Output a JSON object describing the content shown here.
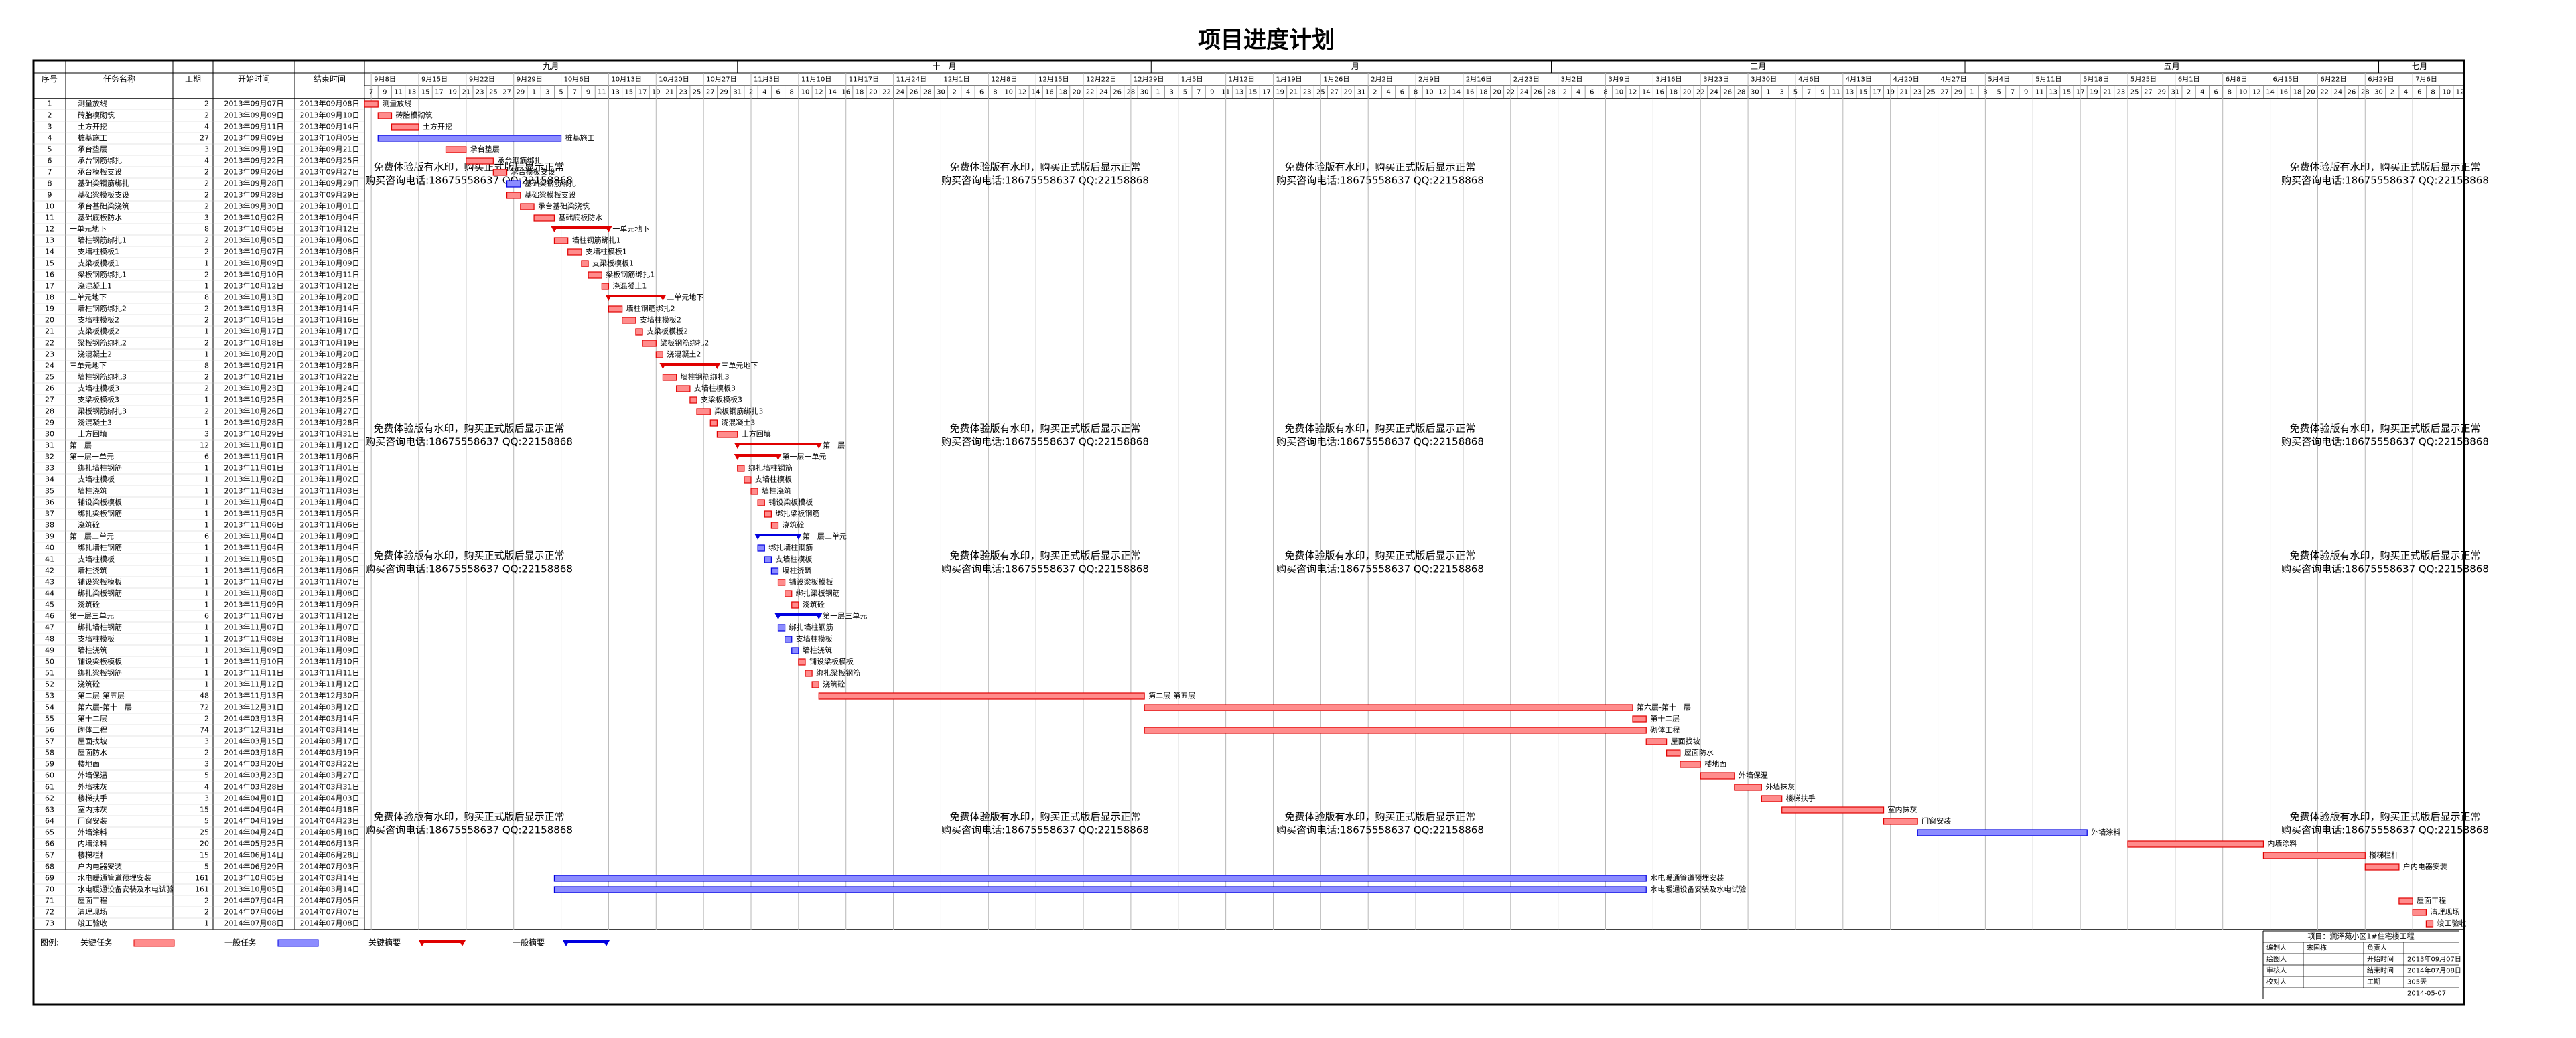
{
  "header": {
    "title": "项目进度计划",
    "columns": [
      "序号",
      "任务名称",
      "工期",
      "开始时间",
      "结束时间"
    ]
  },
  "colors": {
    "critical": "#e00000",
    "normal": "#0000e0",
    "critical_fill": "#ff8c8c",
    "normal_fill": "#8c8cff",
    "watermark": "#d6cc70"
  },
  "timeline": {
    "periods": [
      "九月",
      "十一月",
      "一月",
      "三月",
      "五月",
      "七月"
    ],
    "weeks": [
      "9月8日",
      "9月15日",
      "9月22日",
      "9月29日",
      "10月6日",
      "10月13日",
      "10月20日",
      "10月27日",
      "11月3日",
      "11月10日",
      "11月17日",
      "11月24日",
      "12月1日",
      "12月8日",
      "12月15日",
      "12月22日",
      "12月29日",
      "1月5日",
      "1月12日",
      "1月19日",
      "1月26日",
      "2月2日",
      "2月9日",
      "2月16日",
      "2月23日",
      "3月2日",
      "3月9日",
      "3月16日",
      "3月23日",
      "3月30日",
      "4月6日",
      "4月13日",
      "4月20日",
      "4月27日",
      "5月4日",
      "5月11日",
      "5月18日",
      "5月25日",
      "6月1日",
      "6月8日",
      "6月15日",
      "6月22日",
      "6月29日",
      "7月6日"
    ],
    "days": [
      [
        7,
        9,
        11,
        13,
        15,
        17,
        19,
        21,
        23,
        25,
        27,
        29
      ],
      [
        1,
        3,
        5,
        7,
        9,
        11,
        13,
        15,
        17,
        19,
        21,
        23,
        25,
        27,
        29,
        31
      ],
      [
        2,
        4,
        6,
        8,
        10,
        12,
        14,
        16,
        18,
        20,
        22,
        24,
        26,
        28,
        30
      ],
      [
        2,
        4,
        6,
        8,
        10,
        12,
        14,
        16,
        18,
        20,
        22,
        24,
        26,
        28,
        30
      ],
      [
        1,
        3,
        5,
        7,
        9,
        11,
        13,
        15,
        17,
        19,
        21,
        23,
        25,
        27,
        29,
        31
      ],
      [
        2,
        4,
        6,
        8,
        10,
        12,
        14,
        16,
        18,
        20,
        22,
        24,
        26,
        28
      ],
      [
        2,
        4,
        6,
        8,
        10,
        12,
        14,
        16,
        18,
        20,
        22,
        24,
        26,
        28,
        30
      ],
      [
        1,
        3,
        5,
        7,
        9,
        11,
        13,
        15,
        17,
        19,
        21,
        23,
        25,
        27,
        29
      ],
      [
        1,
        3,
        5,
        7,
        9,
        11,
        13,
        15,
        17,
        19,
        21,
        23,
        25,
        27,
        29,
        31
      ],
      [
        2,
        4,
        6,
        8,
        10,
        12,
        14,
        16,
        18,
        20,
        22,
        24,
        26,
        28,
        30
      ],
      [
        2,
        4,
        6,
        8,
        10,
        12
      ]
    ]
  },
  "tasks": [
    [
      1,
      "测量放线",
      2,
      "2013年09月07日",
      "2013年09月08日",
      "critical"
    ],
    [
      2,
      "砖胎模砌筑",
      2,
      "2013年09月09日",
      "2013年09月10日",
      "critical"
    ],
    [
      3,
      "土方开挖",
      4,
      "2013年09月11日",
      "2013年09月14日",
      "critical"
    ],
    [
      4,
      "桩基施工",
      27,
      "2013年09月09日",
      "2013年10月05日",
      "normal"
    ],
    [
      5,
      "承台垫层",
      3,
      "2013年09月19日",
      "2013年09月21日",
      "critical"
    ],
    [
      6,
      "承台钢筋绑扎",
      4,
      "2013年09月22日",
      "2013年09月25日",
      "critical"
    ],
    [
      7,
      "承台模板支设",
      2,
      "2013年09月26日",
      "2013年09月27日",
      "critical"
    ],
    [
      8,
      "基础梁钢筋绑扎",
      2,
      "2013年09月28日",
      "2013年09月29日",
      "normal"
    ],
    [
      9,
      "基础梁模板支设",
      2,
      "2013年09月28日",
      "2013年09月29日",
      "critical"
    ],
    [
      10,
      "承台基础梁浇筑",
      2,
      "2013年09月30日",
      "2013年10月01日",
      "critical"
    ],
    [
      11,
      "基础底板防水",
      3,
      "2013年10月02日",
      "2013年10月04日",
      "critical"
    ],
    [
      12,
      "一单元地下",
      8,
      "2013年10月05日",
      "2013年10月12日",
      "summary-critical"
    ],
    [
      13,
      "墙柱钢筋绑扎1",
      2,
      "2013年10月05日",
      "2013年10月06日",
      "critical"
    ],
    [
      14,
      "支墙柱模板1",
      2,
      "2013年10月07日",
      "2013年10月08日",
      "critical"
    ],
    [
      15,
      "支梁板模板1",
      1,
      "2013年10月09日",
      "2013年10月09日",
      "critical"
    ],
    [
      16,
      "梁板钢筋绑扎1",
      2,
      "2013年10月10日",
      "2013年10月11日",
      "critical"
    ],
    [
      17,
      "浇混凝土1",
      1,
      "2013年10月12日",
      "2013年10月12日",
      "critical"
    ],
    [
      18,
      "二单元地下",
      8,
      "2013年10月13日",
      "2013年10月20日",
      "summary-critical"
    ],
    [
      19,
      "墙柱钢筋绑扎2",
      2,
      "2013年10月13日",
      "2013年10月14日",
      "critical"
    ],
    [
      20,
      "支墙柱模板2",
      2,
      "2013年10月15日",
      "2013年10月16日",
      "critical"
    ],
    [
      21,
      "支梁板模板2",
      1,
      "2013年10月17日",
      "2013年10月17日",
      "critical"
    ],
    [
      22,
      "梁板钢筋绑扎2",
      2,
      "2013年10月18日",
      "2013年10月19日",
      "critical"
    ],
    [
      23,
      "浇混凝土2",
      1,
      "2013年10月20日",
      "2013年10月20日",
      "critical"
    ],
    [
      24,
      "三单元地下",
      8,
      "2013年10月21日",
      "2013年10月28日",
      "summary-critical"
    ],
    [
      25,
      "墙柱钢筋绑扎3",
      2,
      "2013年10月21日",
      "2013年10月22日",
      "critical"
    ],
    [
      26,
      "支墙柱模板3",
      2,
      "2013年10月23日",
      "2013年10月24日",
      "critical"
    ],
    [
      27,
      "支梁板模板3",
      1,
      "2013年10月25日",
      "2013年10月25日",
      "critical"
    ],
    [
      28,
      "梁板钢筋绑扎3",
      2,
      "2013年10月26日",
      "2013年10月27日",
      "critical"
    ],
    [
      29,
      "浇混凝土3",
      1,
      "2013年10月28日",
      "2013年10月28日",
      "critical"
    ],
    [
      30,
      "土方回填",
      3,
      "2013年10月29日",
      "2013年10月31日",
      "critical"
    ],
    [
      31,
      "第一层",
      12,
      "2013年11月01日",
      "2013年11月12日",
      "summary-critical"
    ],
    [
      32,
      "第一层一单元",
      6,
      "2013年11月01日",
      "2013年11月06日",
      "summary-critical"
    ],
    [
      33,
      "绑扎墙柱钢筋",
      1,
      "2013年11月01日",
      "2013年11月01日",
      "critical"
    ],
    [
      34,
      "支墙柱模板",
      1,
      "2013年11月02日",
      "2013年11月02日",
      "critical"
    ],
    [
      35,
      "墙柱浇筑",
      1,
      "2013年11月03日",
      "2013年11月03日",
      "critical"
    ],
    [
      36,
      "铺设梁板模板",
      1,
      "2013年11月04日",
      "2013年11月04日",
      "critical"
    ],
    [
      37,
      "绑扎梁板钢筋",
      1,
      "2013年11月05日",
      "2013年11月05日",
      "critical"
    ],
    [
      38,
      "浇筑砼",
      1,
      "2013年11月06日",
      "2013年11月06日",
      "critical"
    ],
    [
      39,
      "第一层二单元",
      6,
      "2013年11月04日",
      "2013年11月09日",
      "summary-normal"
    ],
    [
      40,
      "绑扎墙柱钢筋",
      1,
      "2013年11月04日",
      "2013年11月04日",
      "normal"
    ],
    [
      41,
      "支墙柱模板",
      1,
      "2013年11月05日",
      "2013年11月05日",
      "normal"
    ],
    [
      42,
      "墙柱浇筑",
      1,
      "2013年11月06日",
      "2013年11月06日",
      "normal"
    ],
    [
      43,
      "铺设梁板模板",
      1,
      "2013年11月07日",
      "2013年11月07日",
      "critical"
    ],
    [
      44,
      "绑扎梁板钢筋",
      1,
      "2013年11月08日",
      "2013年11月08日",
      "critical"
    ],
    [
      45,
      "浇筑砼",
      1,
      "2013年11月09日",
      "2013年11月09日",
      "critical"
    ],
    [
      46,
      "第一层三单元",
      6,
      "2013年11月07日",
      "2013年11月12日",
      "summary-normal"
    ],
    [
      47,
      "绑扎墙柱钢筋",
      1,
      "2013年11月07日",
      "2013年11月07日",
      "normal"
    ],
    [
      48,
      "支墙柱模板",
      1,
      "2013年11月08日",
      "2013年11月08日",
      "normal"
    ],
    [
      49,
      "墙柱浇筑",
      1,
      "2013年11月09日",
      "2013年11月09日",
      "normal"
    ],
    [
      50,
      "铺设梁板模板",
      1,
      "2013年11月10日",
      "2013年11月10日",
      "critical"
    ],
    [
      51,
      "绑扎梁板钢筋",
      1,
      "2013年11月11日",
      "2013年11月11日",
      "critical"
    ],
    [
      52,
      "浇筑砼",
      1,
      "2013年11月12日",
      "2013年11月12日",
      "critical"
    ],
    [
      53,
      "第二层-第五层",
      48,
      "2013年11月13日",
      "2013年12月30日",
      "critical"
    ],
    [
      54,
      "第六层-第十一层",
      72,
      "2013年12月31日",
      "2014年03月12日",
      "critical"
    ],
    [
      55,
      "第十二层",
      2,
      "2014年03月13日",
      "2014年03月14日",
      "critical"
    ],
    [
      56,
      "砌体工程",
      74,
      "2013年12月31日",
      "2014年03月14日",
      "critical"
    ],
    [
      57,
      "屋面找坡",
      3,
      "2014年03月15日",
      "2014年03月17日",
      "critical"
    ],
    [
      58,
      "屋面防水",
      2,
      "2014年03月18日",
      "2014年03月19日",
      "critical"
    ],
    [
      59,
      "楼地面",
      3,
      "2014年03月20日",
      "2014年03月22日",
      "critical"
    ],
    [
      60,
      "外墙保温",
      5,
      "2014年03月23日",
      "2014年03月27日",
      "critical"
    ],
    [
      61,
      "外墙抹灰",
      4,
      "2014年03月28日",
      "2014年03月31日",
      "critical"
    ],
    [
      62,
      "楼梯扶手",
      3,
      "2014年04月01日",
      "2014年04月03日",
      "critical"
    ],
    [
      63,
      "室内抹灰",
      15,
      "2014年04月04日",
      "2014年04月18日",
      "critical"
    ],
    [
      64,
      "门窗安装",
      5,
      "2014年04月19日",
      "2014年04月23日",
      "critical"
    ],
    [
      65,
      "外墙涂料",
      25,
      "2014年04月24日",
      "2014年05月18日",
      "normal"
    ],
    [
      66,
      "内墙涂料",
      20,
      "2014年05月25日",
      "2014年06月13日",
      "critical"
    ],
    [
      67,
      "楼梯栏杆",
      15,
      "2014年06月14日",
      "2014年06月28日",
      "critical"
    ],
    [
      68,
      "户内电器安装",
      5,
      "2014年06月29日",
      "2014年07月03日",
      "critical"
    ],
    [
      69,
      "水电暖通管道预埋安装",
      161,
      "2013年10月05日",
      "2014年03月14日",
      "normal"
    ],
    [
      70,
      "水电暖通设备安装及水电试验",
      161,
      "2013年10月05日",
      "2014年03月14日",
      "normal"
    ],
    [
      71,
      "屋面工程",
      2,
      "2014年07月04日",
      "2014年07月05日",
      "critical"
    ],
    [
      72,
      "清理现场",
      2,
      "2014年07月06日",
      "2014年07月07日",
      "critical"
    ],
    [
      73,
      "竣工验收",
      1,
      "2014年07月08日",
      "2014年07月08日",
      "critical"
    ]
  ],
  "legend": {
    "label": "图例:",
    "items": [
      [
        "关键任务",
        "critical"
      ],
      [
        "一般任务",
        "normal"
      ],
      [
        "关键摘要",
        "summary-critical"
      ],
      [
        "一般摘要",
        "summary-normal"
      ]
    ]
  },
  "info": {
    "project": "项目：润泽苑小区1#住宅楼工程",
    "rows": [
      [
        "编制人",
        "宋国栋",
        "负责人"
      ],
      [
        "绘图人",
        "开始时间",
        "2013年09月07日"
      ],
      [
        "审核人",
        "结束时间",
        "2014年07月08日"
      ],
      [
        "校对人",
        "工期",
        "305天"
      ]
    ],
    "date": "2014-05-07"
  },
  "watermark": [
    "免费体验版有水印，购买正式版后显示正常",
    "购买咨询电话:18675558637 QQ:22158868"
  ]
}
